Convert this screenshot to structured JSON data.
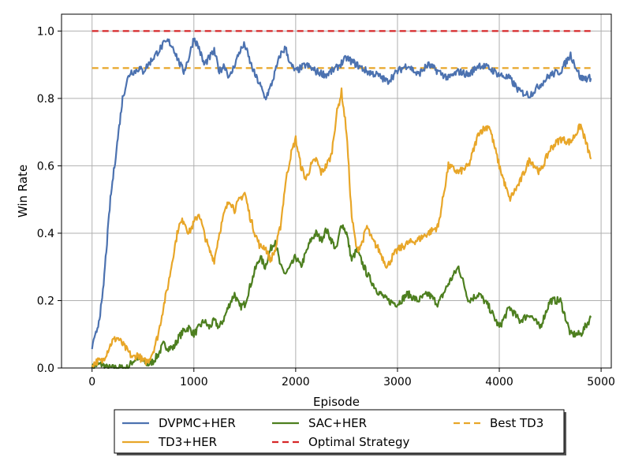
{
  "chart_data": {
    "type": "line",
    "title": "",
    "xlabel": "Episode",
    "ylabel": "Win Rate",
    "xlim": [
      -300,
      5100
    ],
    "ylim": [
      0,
      1.05
    ],
    "xticks": [
      0,
      1000,
      2000,
      3000,
      4000,
      5000
    ],
    "yticks": [
      0.0,
      0.2,
      0.4,
      0.6,
      0.8,
      1.0
    ],
    "xtick_labels": [
      "0",
      "1000",
      "2000",
      "3000",
      "4000",
      "5000"
    ],
    "ytick_labels": [
      "0.0",
      "0.2",
      "0.4",
      "0.6",
      "0.8",
      "1.0"
    ],
    "grid": true,
    "legend_position": "below",
    "series": [
      {
        "name": "DVPMC+HER",
        "color": "#4c72b0",
        "style": "solid",
        "x": [
          0,
          30,
          60,
          100,
          140,
          180,
          220,
          260,
          300,
          340,
          380,
          420,
          460,
          500,
          550,
          600,
          650,
          700,
          750,
          800,
          850,
          900,
          950,
          1000,
          1050,
          1100,
          1150,
          1200,
          1250,
          1300,
          1350,
          1400,
          1450,
          1500,
          1550,
          1600,
          1650,
          1700,
          1750,
          1800,
          1850,
          1900,
          1950,
          2000,
          2100,
          2200,
          2300,
          2400,
          2500,
          2600,
          2700,
          2800,
          2900,
          3000,
          3100,
          3200,
          3300,
          3400,
          3500,
          3600,
          3700,
          3800,
          3900,
          4000,
          4100,
          4200,
          4300,
          4400,
          4500,
          4600,
          4700,
          4800,
          4900
        ],
        "y": [
          0.06,
          0.09,
          0.13,
          0.2,
          0.35,
          0.5,
          0.6,
          0.7,
          0.8,
          0.85,
          0.88,
          0.88,
          0.89,
          0.88,
          0.9,
          0.92,
          0.94,
          0.96,
          0.97,
          0.95,
          0.91,
          0.88,
          0.92,
          0.98,
          0.95,
          0.9,
          0.92,
          0.94,
          0.88,
          0.9,
          0.86,
          0.9,
          0.94,
          0.96,
          0.91,
          0.87,
          0.84,
          0.8,
          0.83,
          0.88,
          0.93,
          0.95,
          0.9,
          0.88,
          0.9,
          0.88,
          0.87,
          0.89,
          0.92,
          0.9,
          0.88,
          0.87,
          0.85,
          0.88,
          0.9,
          0.87,
          0.9,
          0.88,
          0.86,
          0.88,
          0.87,
          0.9,
          0.89,
          0.87,
          0.86,
          0.82,
          0.81,
          0.84,
          0.87,
          0.88,
          0.93,
          0.86,
          0.86
        ]
      },
      {
        "name": "TD3+HER",
        "color": "#e8a628",
        "style": "solid",
        "x": [
          0,
          50,
          100,
          150,
          200,
          250,
          300,
          350,
          400,
          450,
          500,
          550,
          600,
          650,
          700,
          750,
          800,
          850,
          900,
          950,
          1000,
          1050,
          1100,
          1150,
          1200,
          1250,
          1300,
          1350,
          1400,
          1450,
          1500,
          1550,
          1600,
          1650,
          1700,
          1750,
          1800,
          1850,
          1900,
          1950,
          2000,
          2050,
          2100,
          2150,
          2200,
          2250,
          2300,
          2350,
          2400,
          2450,
          2500,
          2550,
          2600,
          2650,
          2700,
          2750,
          2800,
          2850,
          2900,
          2950,
          3000,
          3100,
          3200,
          3300,
          3400,
          3500,
          3600,
          3700,
          3800,
          3900,
          4000,
          4100,
          4200,
          4300,
          4400,
          4500,
          4600,
          4700,
          4800,
          4900
        ],
        "y": [
          0.01,
          0.02,
          0.02,
          0.05,
          0.08,
          0.09,
          0.07,
          0.05,
          0.03,
          0.04,
          0.02,
          0.02,
          0.05,
          0.1,
          0.18,
          0.25,
          0.34,
          0.42,
          0.44,
          0.4,
          0.43,
          0.46,
          0.4,
          0.35,
          0.32,
          0.4,
          0.46,
          0.5,
          0.47,
          0.5,
          0.52,
          0.45,
          0.4,
          0.36,
          0.36,
          0.32,
          0.35,
          0.42,
          0.55,
          0.63,
          0.68,
          0.6,
          0.56,
          0.6,
          0.62,
          0.58,
          0.6,
          0.63,
          0.75,
          0.82,
          0.7,
          0.45,
          0.35,
          0.37,
          0.42,
          0.38,
          0.36,
          0.33,
          0.3,
          0.33,
          0.35,
          0.37,
          0.38,
          0.4,
          0.42,
          0.6,
          0.58,
          0.6,
          0.7,
          0.72,
          0.6,
          0.5,
          0.55,
          0.62,
          0.58,
          0.65,
          0.68,
          0.67,
          0.72,
          0.62
        ]
      },
      {
        "name": "SAC+HER",
        "color": "#4d7f1f",
        "style": "solid",
        "x": [
          0,
          50,
          100,
          150,
          200,
          250,
          300,
          350,
          400,
          450,
          500,
          550,
          600,
          650,
          700,
          750,
          800,
          850,
          900,
          950,
          1000,
          1050,
          1100,
          1150,
          1200,
          1250,
          1300,
          1350,
          1400,
          1450,
          1500,
          1550,
          1600,
          1650,
          1700,
          1750,
          1800,
          1850,
          1900,
          1950,
          2000,
          2050,
          2100,
          2150,
          2200,
          2250,
          2300,
          2350,
          2400,
          2450,
          2500,
          2550,
          2600,
          2700,
          2800,
          2900,
          3000,
          3100,
          3200,
          3300,
          3400,
          3500,
          3600,
          3700,
          3800,
          3900,
          4000,
          4100,
          4200,
          4300,
          4400,
          4500,
          4600,
          4700,
          4800,
          4900
        ],
        "y": [
          0.0,
          0.01,
          0.01,
          0.0,
          0.0,
          0.0,
          0.0,
          0.0,
          0.02,
          0.03,
          0.02,
          0.01,
          0.02,
          0.04,
          0.07,
          0.06,
          0.06,
          0.09,
          0.11,
          0.12,
          0.1,
          0.12,
          0.14,
          0.12,
          0.14,
          0.12,
          0.15,
          0.19,
          0.22,
          0.18,
          0.19,
          0.24,
          0.29,
          0.33,
          0.3,
          0.35,
          0.38,
          0.3,
          0.28,
          0.3,
          0.33,
          0.3,
          0.34,
          0.38,
          0.4,
          0.38,
          0.41,
          0.38,
          0.35,
          0.43,
          0.4,
          0.32,
          0.35,
          0.28,
          0.23,
          0.2,
          0.19,
          0.22,
          0.2,
          0.22,
          0.19,
          0.25,
          0.3,
          0.2,
          0.22,
          0.18,
          0.12,
          0.18,
          0.14,
          0.16,
          0.12,
          0.2,
          0.2,
          0.1,
          0.1,
          0.15
        ]
      },
      {
        "name": "Optimal Strategy",
        "color": "#d62728",
        "style": "dashed",
        "x": [
          0,
          4900
        ],
        "y": [
          1.0,
          1.0
        ]
      },
      {
        "name": "Best TD3",
        "color": "#e8a628",
        "style": "dashed",
        "x": [
          0,
          4900
        ],
        "y": [
          0.89,
          0.89
        ]
      }
    ],
    "legend": {
      "columns": [
        [
          "DVPMC+HER",
          "TD3+HER"
        ],
        [
          "SAC+HER",
          "Optimal Strategy"
        ],
        [
          "Best TD3"
        ]
      ]
    }
  }
}
